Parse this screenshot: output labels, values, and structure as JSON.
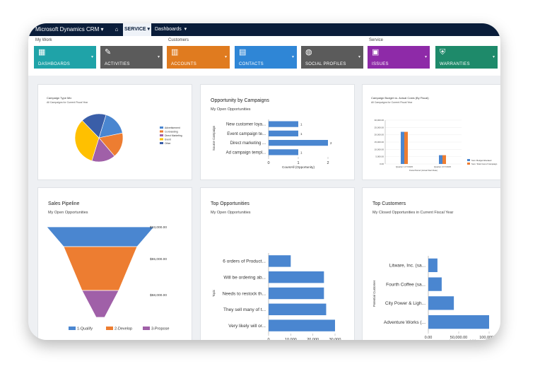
{
  "app": {
    "title": "Microsoft Dynamics CRM",
    "area": "SERVICE",
    "breadcrumb": "Dashboards"
  },
  "nav": {
    "groups": [
      "My Work",
      "Customers",
      "Service"
    ],
    "tiles": [
      {
        "label": "DASHBOARDS",
        "icon": "dashboard-icon",
        "color": "#1fa3a8"
      },
      {
        "label": "ACTIVITIES",
        "icon": "activities-icon",
        "color": "#5b5b5b"
      },
      {
        "label": "ACCOUNTS",
        "icon": "accounts-icon",
        "color": "#e07b1f"
      },
      {
        "label": "CONTACTS",
        "icon": "contacts-icon",
        "color": "#2f86d6"
      },
      {
        "label": "SOCIAL PROFILES",
        "icon": "social-icon",
        "color": "#5b5b5b"
      },
      {
        "label": "ISSUES",
        "icon": "issues-icon",
        "color": "#8e2aa8"
      },
      {
        "label": "WARRANTIES",
        "icon": "warranties-icon",
        "color": "#1e8a6a"
      }
    ]
  },
  "colors": {
    "blue": "#4a86d0",
    "orange": "#ed7d31",
    "purple": "#a060a8",
    "yellow": "#ffc000",
    "darkblue": "#3a5ea8"
  },
  "cards": {
    "campaign_type_mix": {
      "title": "Campaign Type Mix",
      "subtitle": "All Campaigns for Current Fiscal Year"
    },
    "opportunity_by_campaigns": {
      "title": "Opportunity by Campaigns",
      "subtitle": "My Open Opportunities"
    },
    "campaign_budget": {
      "title": "Campaign Budget vs. Actual Costs (By Fiscal)",
      "subtitle": "All Campaigns for Current Fiscal Year"
    },
    "sales_pipeline": {
      "title": "Sales Pipeline",
      "subtitle": "My Open Opportunities"
    },
    "top_opportunities": {
      "title": "Top Opportunities",
      "subtitle": "My Open Opportunities"
    },
    "top_customers": {
      "title": "Top Customers",
      "subtitle": "My Closed Opportunities in Current Fiscal Year"
    }
  },
  "chart_data": [
    {
      "type": "pie",
      "title": "Campaign Type Mix",
      "categories": [
        "Advertisement",
        "Co-branding",
        "Direct Marketing",
        "Event",
        "Other"
      ],
      "values": [
        17,
        17,
        16,
        33,
        17
      ]
    },
    {
      "type": "bar",
      "orientation": "horizontal",
      "title": "Opportunity by Campaigns",
      "categories": [
        "New customer loya...",
        "Event campaign te...",
        "Direct marketing ...",
        "Ad campaign templ..."
      ],
      "values": [
        1,
        1,
        2,
        1
      ],
      "xlabel": "CountAll (Opportunity)",
      "ylabel": "Source Campaign",
      "xlim": [
        0,
        2
      ],
      "xticks": [
        "0",
        "1",
        "2"
      ]
    },
    {
      "type": "bar",
      "title": "Campaign Budget vs. Actual Costs (By Fiscal)",
      "categories": [
        "Quarter 1 FY2015",
        "Quarter 2 FY2015"
      ],
      "series": [
        {
          "name": "Sum: Budget Allocated",
          "values": [
            22000,
            6000
          ]
        },
        {
          "name": "Sum: Total Cost of Campaign",
          "values": [
            22000,
            6000
          ]
        }
      ],
      "yticks": [
        "0.00",
        "5,000.00",
        "10,000.00",
        "15,000.00",
        "20,000.00",
        "25,000.00",
        "30,000.00"
      ],
      "ylim": [
        0,
        30000
      ],
      "xlabel": "Fiscal Period (Actual Start Date)"
    },
    {
      "type": "funnel",
      "title": "Sales Pipeline",
      "categories": [
        "1-Qualify",
        "2-Develop",
        "3-Propose"
      ],
      "values": [
        23000,
        55000,
        58000
      ],
      "value_labels": [
        "$23,000.00",
        "$55,000.00",
        "$58,000.00"
      ]
    },
    {
      "type": "bar",
      "orientation": "horizontal",
      "title": "Top Opportunities",
      "categories": [
        "6 orders of Product...",
        "Will be ordering ab...",
        "Needs to restock th...",
        "They sell many of t...",
        "Very likely will or..."
      ],
      "values": [
        10000,
        25000,
        25000,
        26000,
        30000
      ],
      "xlabel": "Est. Revenue",
      "ylabel": "Topic",
      "xlim": [
        0,
        30000
      ],
      "xticks": [
        "0",
        "10,000",
        "20,000",
        "30,000"
      ]
    },
    {
      "type": "bar",
      "orientation": "horizontal",
      "title": "Top Customers",
      "categories": [
        "Litware, Inc. (sa...",
        "Fourth Coffee (sa...",
        "City Power & Ligh...",
        "Adventure Works (..."
      ],
      "values": [
        15000,
        22000,
        42000,
        100000
      ],
      "xlabel": "Sum (Est. Revenue) ($)",
      "ylabel": "Potential Customer",
      "xlim": [
        0,
        100000
      ],
      "xticks": [
        "0.00",
        "50,000.00",
        "100,000.00"
      ]
    }
  ]
}
